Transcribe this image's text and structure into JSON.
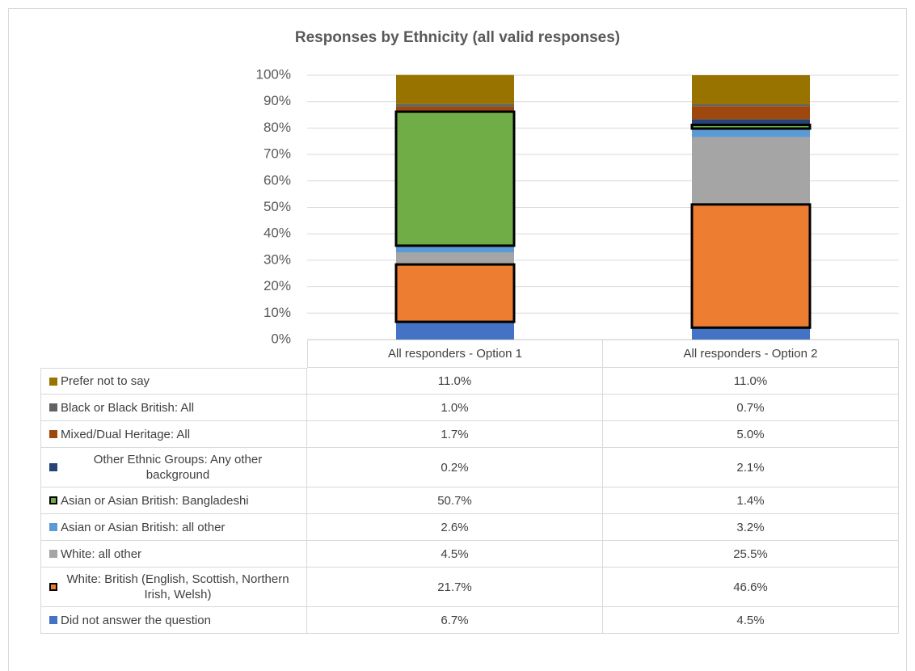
{
  "chart_data": {
    "type": "stacked_bar",
    "title": "Responses by Ethnicity (all valid responses)",
    "categories": [
      "All responders - Option 1",
      "All responders - Option 2"
    ],
    "ylim": [
      0,
      100
    ],
    "yticks": [
      {
        "value": 0,
        "label": "0%"
      },
      {
        "value": 10,
        "label": "10%"
      },
      {
        "value": 20,
        "label": "20%"
      },
      {
        "value": 30,
        "label": "30%"
      },
      {
        "value": 40,
        "label": "40%"
      },
      {
        "value": 50,
        "label": "50%"
      },
      {
        "value": 60,
        "label": "60%"
      },
      {
        "value": 70,
        "label": "70%"
      },
      {
        "value": 80,
        "label": "80%"
      },
      {
        "value": 90,
        "label": "90%"
      },
      {
        "value": 100,
        "label": "100%"
      }
    ],
    "grid": true,
    "series": [
      {
        "name": "Did not answer the question",
        "color": "#4472c4",
        "values": [
          6.7,
          4.5
        ],
        "value_labels": [
          "6.7%",
          "4.5%"
        ]
      },
      {
        "name": "White: British (English, Scottish, Northern Irish, Welsh)",
        "color": "#ed7d31",
        "outline": true,
        "values": [
          21.7,
          46.6
        ],
        "value_labels": [
          "21.7%",
          "46.6%"
        ]
      },
      {
        "name": "White: all other",
        "color": "#a5a5a5",
        "values": [
          4.5,
          25.5
        ],
        "value_labels": [
          "4.5%",
          "25.5%"
        ]
      },
      {
        "name": "Asian or Asian British: all other",
        "color": "#5b9bd5",
        "values": [
          2.6,
          3.2
        ],
        "value_labels": [
          "2.6%",
          "3.2%"
        ]
      },
      {
        "name": "Asian or Asian British: Bangladeshi",
        "color": "#70ad47",
        "outline": true,
        "values": [
          50.7,
          1.4
        ],
        "value_labels": [
          "50.7%",
          "1.4%"
        ]
      },
      {
        "name": "Other Ethnic Groups: Any other background",
        "color": "#264478",
        "values": [
          0.2,
          2.1
        ],
        "value_labels": [
          "0.2%",
          "2.1%"
        ]
      },
      {
        "name": "Mixed/Dual Heritage: All",
        "color": "#9e480e",
        "values": [
          1.7,
          5.0
        ],
        "value_labels": [
          "1.7%",
          "5.0%"
        ]
      },
      {
        "name": "Black or Black British: All",
        "color": "#636363",
        "values": [
          1.0,
          0.7
        ],
        "value_labels": [
          "1.0%",
          "0.7%"
        ]
      },
      {
        "name": "Prefer not to say",
        "color": "#997300",
        "values": [
          11.0,
          11.0
        ],
        "value_labels": [
          "11.0%",
          "11.0%"
        ]
      }
    ]
  }
}
